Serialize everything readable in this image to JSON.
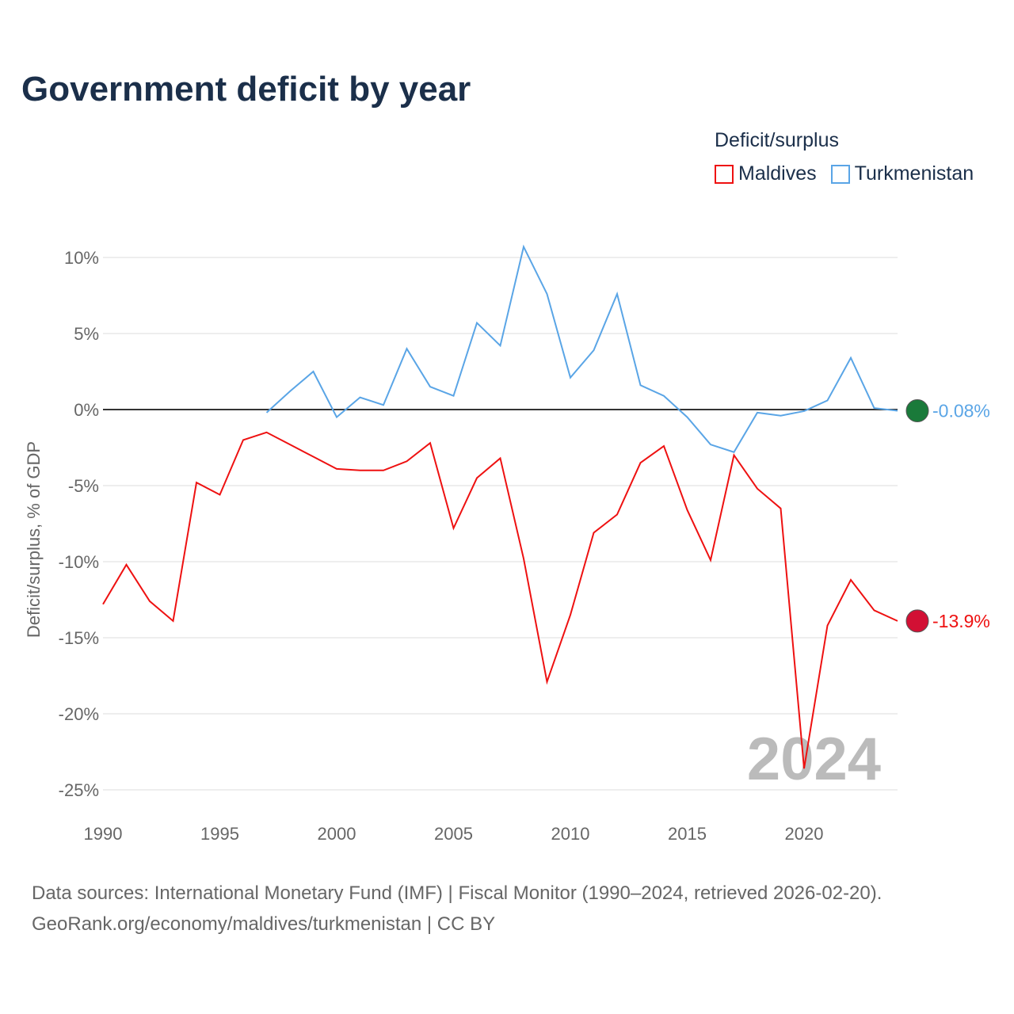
{
  "title": "Government deficit by year",
  "legend": {
    "title": "Deficit/surplus",
    "items": [
      {
        "name": "Maldives",
        "color": "#ee1111"
      },
      {
        "name": "Turkmenistan",
        "color": "#5aa5e6"
      }
    ]
  },
  "source": {
    "line1": "Data sources: International Monetary Fund (IMF) | Fiscal Monitor (1990–2024, retrieved 2026-02-20).",
    "line2": "GeoRank.org/economy/maldives/turkmenistan | CC BY"
  },
  "chart_data": {
    "type": "line",
    "title": "Government deficit by year",
    "xlabel": "",
    "ylabel": "Deficit/surplus, % of GDP",
    "xlim": [
      1990,
      2024
    ],
    "ylim": [
      -25,
      10
    ],
    "xticks": [
      1990,
      1995,
      2000,
      2005,
      2010,
      2015,
      2020
    ],
    "xtick_labels": [
      "1990",
      "1995",
      "2000",
      "2005",
      "2010",
      "2015",
      "2020"
    ],
    "yticks": [
      10,
      5,
      0,
      -5,
      -10,
      -15,
      -20,
      -25
    ],
    "ytick_labels": [
      "10%",
      "5%",
      "0%",
      "-5%",
      "-10%",
      "-15%",
      "-20%",
      "-25%"
    ],
    "year_watermark": "2024",
    "series": [
      {
        "name": "Maldives",
        "color": "#ee1111",
        "end_label": "-13.9%",
        "x_start": 1990,
        "values": [
          -12.8,
          -10.2,
          -12.6,
          -13.9,
          -4.8,
          -5.6,
          -2.0,
          -1.5,
          -2.3,
          -3.1,
          -3.9,
          -4.0,
          -4.0,
          -3.4,
          -2.2,
          -7.8,
          -4.5,
          -3.2,
          -9.8,
          -17.9,
          -13.5,
          -8.1,
          -6.9,
          -3.5,
          -2.4,
          -6.6,
          -9.9,
          -3.0,
          -5.2,
          -6.5,
          -23.6,
          -14.2,
          -11.2,
          -13.2,
          -13.9
        ]
      },
      {
        "name": "Turkmenistan",
        "color": "#5aa5e6",
        "end_label": "-0.08%",
        "x_start": 1997,
        "values": [
          -0.2,
          1.2,
          2.5,
          -0.5,
          0.8,
          0.3,
          4.0,
          1.5,
          0.9,
          5.7,
          4.2,
          10.7,
          7.6,
          2.1,
          3.9,
          7.6,
          1.6,
          0.9,
          -0.5,
          -2.3,
          -2.8,
          -0.2,
          -0.4,
          -0.1,
          0.6,
          3.4,
          0.1,
          -0.08
        ]
      }
    ]
  }
}
